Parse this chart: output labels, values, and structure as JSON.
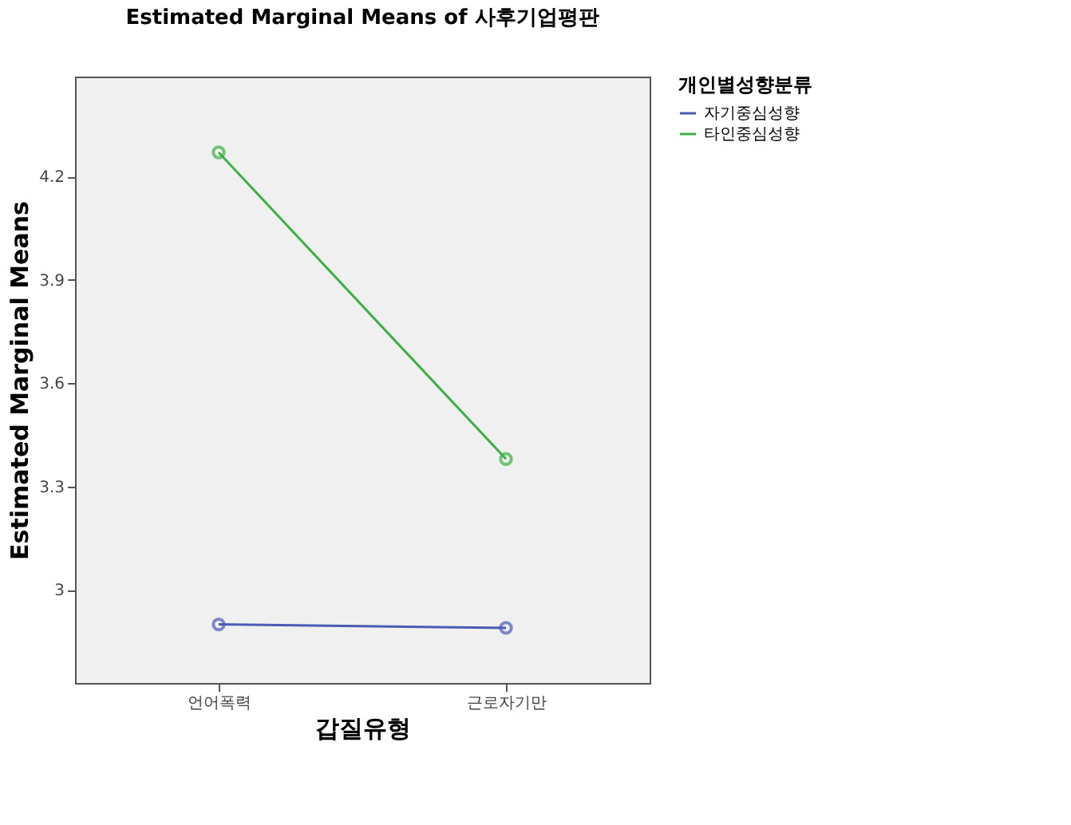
{
  "chart_data": {
    "type": "line",
    "title": "Estimated Marginal Means of 사후기업평판",
    "xlabel": "갑질유형",
    "ylabel": "Estimated Marginal Means",
    "legend_title": "개인별성향분류",
    "categories": [
      "언어폭력",
      "근로자기만"
    ],
    "series": [
      {
        "name": "자기중심성향",
        "color": "#4a5bb5",
        "values": [
          2.9,
          2.89
        ]
      },
      {
        "name": "타인중심성향",
        "color": "#3cb043",
        "values": [
          4.27,
          3.38
        ]
      }
    ],
    "ylim": [
      2.73,
      4.49
    ],
    "yticks": [
      3,
      3.3,
      3.6,
      3.9,
      4.2
    ],
    "grid": false,
    "legend": "top right",
    "marker": "circle",
    "line_style": "solid"
  }
}
